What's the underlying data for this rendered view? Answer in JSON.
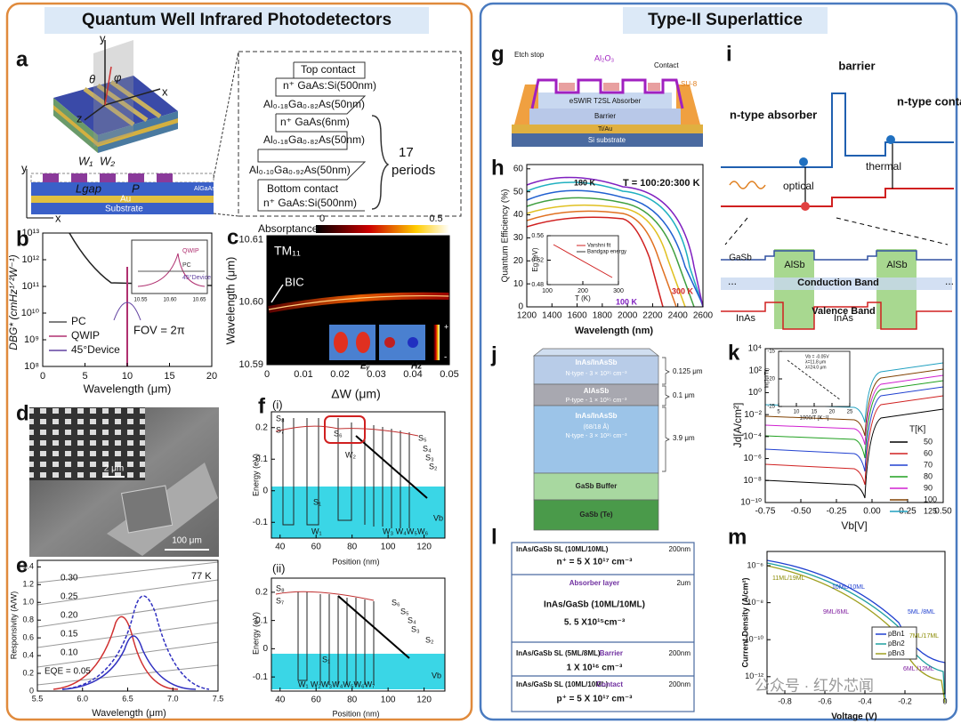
{
  "left": {
    "title": "Quantum Well Infrared Photodetectors"
  },
  "right": {
    "title": "Type-II Superlattice"
  },
  "a": {
    "letter": "a",
    "labels": [
      "y",
      "x",
      "z",
      "θ",
      "φ",
      "W₁",
      "W₂",
      "Lgap",
      "P",
      "Au",
      "Substrate",
      "AlGaAs",
      "y",
      "x"
    ],
    "stack": [
      "Top contact",
      "n⁺ GaAs:Si(500nm)",
      "Al₀.₁₈Ga₀.₈₂As(50nm)",
      "n⁺ GaAs(6nm)",
      "Al₀.₁₈Ga₀.₈₂As(50nm)",
      "Al₀.₁₀Ga₀.₉₂As(50nm)",
      "Bottom contact",
      "n⁺ GaAs:Si(500nm)"
    ],
    "periods": [
      "17",
      "periods"
    ]
  },
  "b": {
    "letter": "b",
    "ylabel": "DBG* (cmHz¹ᐟ²W⁻¹)",
    "xlabel": "Wavelength (μm)",
    "xticks": [
      "0",
      "5",
      "10",
      "15",
      "20"
    ],
    "yticks": [
      "10⁸",
      "10⁹",
      "10¹⁰",
      "10¹¹",
      "10¹²",
      "10¹³"
    ],
    "legend": [
      "PC",
      "QWIP",
      "45°Device"
    ],
    "note": "FOV = 2π",
    "inset": {
      "labels": [
        "QWIP",
        "PC",
        "45°Device"
      ],
      "xticks": [
        "10.55",
        "10.60",
        "10.65"
      ]
    }
  },
  "c": {
    "letter": "c",
    "colorbar": {
      "title": "Absorptance",
      "ticks": [
        "0",
        "0.5"
      ]
    },
    "ylabel": "Wavelength (μm)",
    "xlabel": "ΔW (μm)",
    "yticks": [
      "10.59",
      "10.60",
      "10.61"
    ],
    "xticks": [
      "0",
      "0.01",
      "0.02",
      "0.03",
      "0.04",
      "0.05"
    ],
    "labels": [
      "TM₁₁",
      "BIC",
      "Eᵧ",
      "Hz",
      "+",
      "-"
    ]
  },
  "d": {
    "letter": "d",
    "scales": [
      "2 μm",
      "100 μm"
    ]
  },
  "e": {
    "letter": "e",
    "xlabel": "Wavelength (μm)",
    "ylabel": "Responsivity (A/W)",
    "xticks": [
      "5.5",
      "6.0",
      "6.5",
      "7.0",
      "7.5"
    ],
    "yticks": [
      "0",
      "0.2",
      "0.4",
      "0.6",
      "0.8",
      "1.0",
      "1.2",
      "1.4"
    ],
    "eqe": [
      "0.30",
      "0.25",
      "0.20",
      "0.15",
      "0.10",
      "EQE = 0.05"
    ],
    "temp": "77 K"
  },
  "f": {
    "letter": "f",
    "sub": [
      "(i)",
      "(ii)"
    ],
    "ylabel": "Energy (eV)",
    "xlabel": "Position (nm)",
    "yticks": [
      "-0.1",
      "0",
      "0.1",
      "0.2"
    ],
    "xticks": [
      "40",
      "60",
      "80",
      "100",
      "120"
    ],
    "labels_i": [
      "S₈",
      "S₇",
      "S₆",
      "W₂",
      "S₅",
      "S₄",
      "S₃",
      "S₂",
      "S₁",
      "W₁",
      "W₃ W₄W₅W₆",
      "Vb"
    ],
    "labels_ii": [
      "S₈",
      "S₇",
      "S₆",
      "S₅",
      "S₄",
      "S₃",
      "S₂",
      "S₁",
      "W₁ W₂W₃W₄W₅W₆W₇",
      "Vb"
    ]
  },
  "g": {
    "letter": "g",
    "labels": [
      "Etch stop",
      "Al₂O₃",
      "Contact",
      "SU-8",
      "eSWIR T2SL Absorber",
      "Barrier",
      "Ti/Au",
      "Si substrate"
    ]
  },
  "h": {
    "letter": "h",
    "ylabel": "Quantum Efficiency (%)",
    "xlabel": "Wavelength (nm)",
    "yticks": [
      "0",
      "10",
      "20",
      "30",
      "40",
      "50",
      "60"
    ],
    "xticks": [
      "1200",
      "1400",
      "1600",
      "1800",
      "2000",
      "2200",
      "2400",
      "2600"
    ],
    "labels": [
      "T = 100:20:300 K",
      "180 K",
      "300 K",
      "100 K"
    ],
    "inset": {
      "ylabel": "Eg (eV)",
      "xlabel": "T (K)",
      "yticks": [
        "0.48",
        "0.52",
        "0.56"
      ],
      "xticks": [
        "100",
        "200",
        "300"
      ],
      "legend": [
        "Varshni fit",
        "Bandgap energy"
      ]
    }
  },
  "i": {
    "letter": "i",
    "labels": [
      "barrier",
      "n-type absorber",
      "n-type contact",
      "optical",
      "thermal",
      "GaSb",
      "AlSb",
      "AlSb",
      "Conduction Band",
      "Valence Band",
      "InAs",
      "InAs",
      "...",
      "..."
    ]
  },
  "j": {
    "letter": "j",
    "layers": [
      {
        "name": "InAs/InAsSb",
        "desc": "N-type - 3 × 10¹⁵ cm⁻³",
        "thickness": "0.125 μm"
      },
      {
        "name": "AlAsSb",
        "desc": "P-type - 1 × 10¹⁵ cm⁻³",
        "thickness": "0.1 μm"
      },
      {
        "name": "InAs/InAsSb",
        "sub": "(68/18 Å)",
        "desc": "N-type - 3 × 10¹⁵ cm⁻³",
        "thickness": "3.9 μm"
      },
      {
        "name": "GaSb Buffer"
      },
      {
        "name": "GaSb (Te)"
      }
    ]
  },
  "k": {
    "letter": "k",
    "ylabel": "Jd[A/cm²]",
    "xlabel": "Vb[V]",
    "yticks": [
      "10⁻¹⁰",
      "10⁻⁸",
      "10⁻⁶",
      "10⁻⁴",
      "10⁻²",
      "10⁰",
      "10²",
      "10⁴"
    ],
    "xticks": [
      "-0.75",
      "-0.50",
      "-0.25",
      "0.00",
      "0.25",
      "0.50"
    ],
    "legend": {
      "title": "T[K]",
      "items": [
        "50",
        "60",
        "70",
        "80",
        "90",
        "100",
        "125"
      ]
    },
    "inset": {
      "labels": [
        "Vb = -0.05V",
        "λ=11.8 μm",
        "λ=24.0 μm"
      ],
      "ylabel": "ln(Jd/T³)",
      "xlabel": "1000/T [K⁻¹]",
      "yticks": [
        "-25",
        "-20",
        "-15"
      ],
      "xticks": [
        "5",
        "10",
        "15",
        "20",
        "25"
      ]
    }
  },
  "l": {
    "letter": "l",
    "rows": [
      {
        "lines": [
          "InAs/GaSb SL (10ML/10ML)",
          "n⁺ = 5 X 10¹⁷ cm⁻³"
        ],
        "thickness": "200nm"
      },
      {
        "lines": [
          "Absorber layer",
          "InAs/GaSb (10ML/10ML)",
          "5. 5 X10¹⁵cm⁻³"
        ],
        "thickness": "2um"
      },
      {
        "lines": [
          "InAs/GaSb SL (5ML/8ML)",
          "Barrier",
          "1 X 10¹⁶ cm⁻³"
        ],
        "thickness": "200nm"
      },
      {
        "lines": [
          "InAs/GaSb SL (10ML/10ML)",
          "Contact",
          "p⁺ = 5 X 10¹⁷ cm⁻³"
        ],
        "thickness": "200nm"
      }
    ]
  },
  "m": {
    "letter": "m",
    "ylabel": "Current Density (A/cm²)",
    "xlabel": "Voltage (V)",
    "yticks": [
      "10⁻¹²",
      "10⁻¹⁰",
      "10⁻⁸",
      "10⁻⁶"
    ],
    "xticks": [
      "-0.8",
      "-0.6",
      "-0.4",
      "-0.2",
      "0"
    ],
    "legend": [
      "pBn1",
      "pBn2",
      "pBn3"
    ],
    "labels": [
      "11ML/19ML",
      "10ML/10ML",
      "9ML/6ML",
      "5ML /8ML",
      "7ML/17ML",
      "6ML /12ML"
    ]
  },
  "watermark": "公众号 · 红外芯闻"
}
